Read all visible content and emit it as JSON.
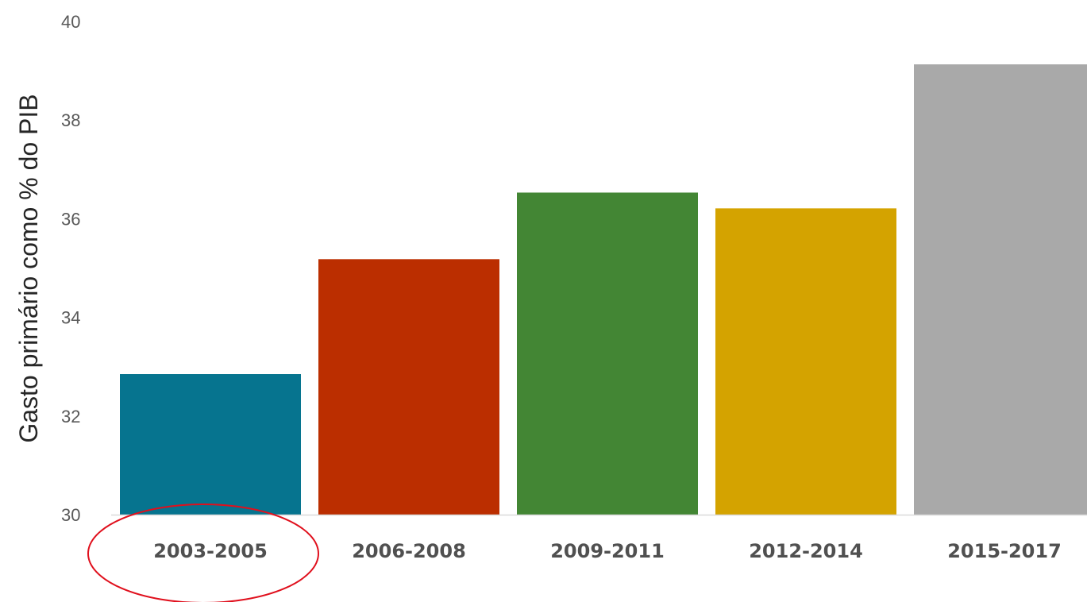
{
  "chart_data": {
    "type": "bar",
    "categories": [
      "2003-2005",
      "2006-2008",
      "2009-2011",
      "2012-2014",
      "2015-2017"
    ],
    "values": [
      32.85,
      35.18,
      36.53,
      36.21,
      39.13
    ],
    "colors": [
      "#06748f",
      "#bb2e00",
      "#438634",
      "#d4a300",
      "#a9a9a9"
    ],
    "title": "",
    "xlabel": "",
    "ylabel": "Gasto primário como % do PIB",
    "ylim": [
      30,
      40
    ],
    "yticks": [
      "30",
      "32",
      "34",
      "36",
      "38",
      "40"
    ],
    "grid": false,
    "annotations": [
      {
        "type": "ellipse",
        "target": "2003-2005",
        "color": "#e0101d"
      }
    ]
  }
}
